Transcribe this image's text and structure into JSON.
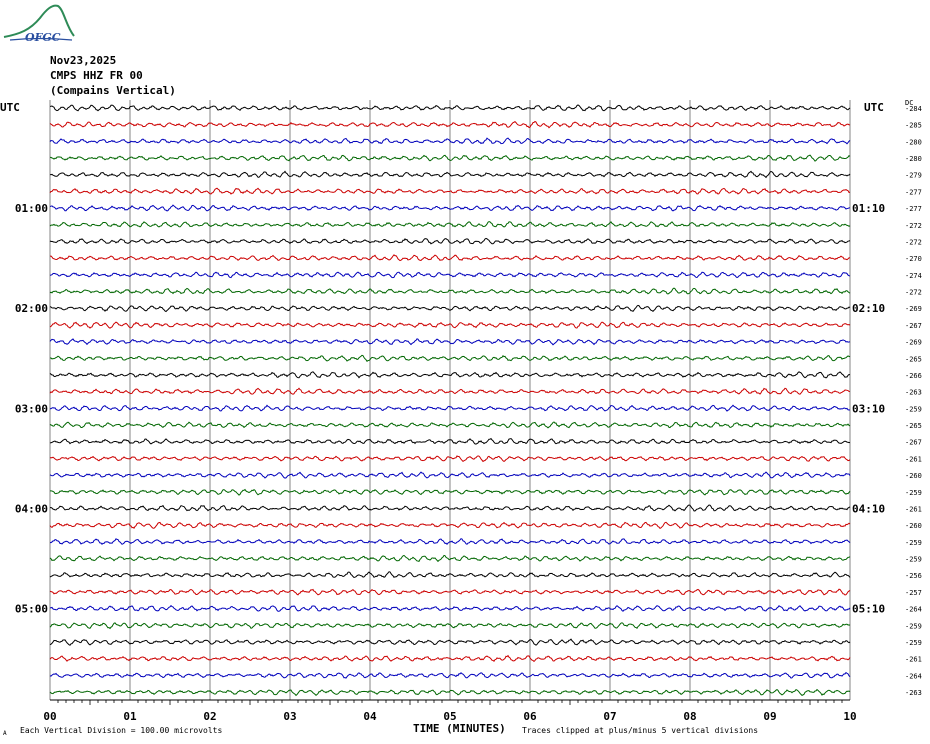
{
  "header": {
    "logo_text": "OFGC",
    "date": "Nov23,2025",
    "station": "CMPS HHZ FR 00",
    "location": "(Compains Vertical)",
    "utc_left": "UTC",
    "utc_right": "UTC",
    "dc_label": "DC"
  },
  "footer": {
    "scale_note": "Each Vertical Division =  100.00 microvolts",
    "clip_note": "Traces clipped at plus/minus 5 vertical divisions",
    "corner_mark": "A"
  },
  "colors": {
    "cycle": [
      "#000000",
      "#cc0000",
      "#0000bb",
      "#006600"
    ],
    "grid": "#666666"
  },
  "chart_data": {
    "type": "line",
    "title": "",
    "xlabel": "TIME (MINUTES)",
    "x_ticks": [
      "00",
      "01",
      "02",
      "03",
      "04",
      "05",
      "06",
      "07",
      "08",
      "09",
      "10"
    ],
    "xlim": [
      0,
      10
    ],
    "left_time_labels": [
      {
        "row": 6,
        "text": "01:00"
      },
      {
        "row": 12,
        "text": "02:00"
      },
      {
        "row": 18,
        "text": "03:00"
      },
      {
        "row": 24,
        "text": "04:00"
      },
      {
        "row": 30,
        "text": "05:00"
      }
    ],
    "right_time_labels": [
      {
        "row": 6,
        "text": "01:10"
      },
      {
        "row": 12,
        "text": "02:10"
      },
      {
        "row": 18,
        "text": "03:10"
      },
      {
        "row": 24,
        "text": "04:10"
      },
      {
        "row": 30,
        "text": "05:10"
      }
    ],
    "dc_offsets": [
      "-284",
      "-285",
      "-280",
      "-280",
      "-279",
      "-277",
      "-277",
      "-272",
      "-272",
      "-270",
      "-274",
      "-272",
      "-269",
      "-267",
      "-269",
      "-265",
      "-266",
      "-263",
      "-259",
      "-265",
      "-267",
      "-261",
      "-260",
      "-259",
      "-261",
      "-260",
      "-259",
      "-259",
      "-256",
      "-257",
      "-264",
      "-259",
      "-259",
      "-261",
      "-264",
      "-263"
    ],
    "trace_rows": 36,
    "minutes_per_row": 10,
    "note": "Helicorder seismogram; each row is 10 minutes of ground motion, colors cycle black/red/blue/green"
  }
}
